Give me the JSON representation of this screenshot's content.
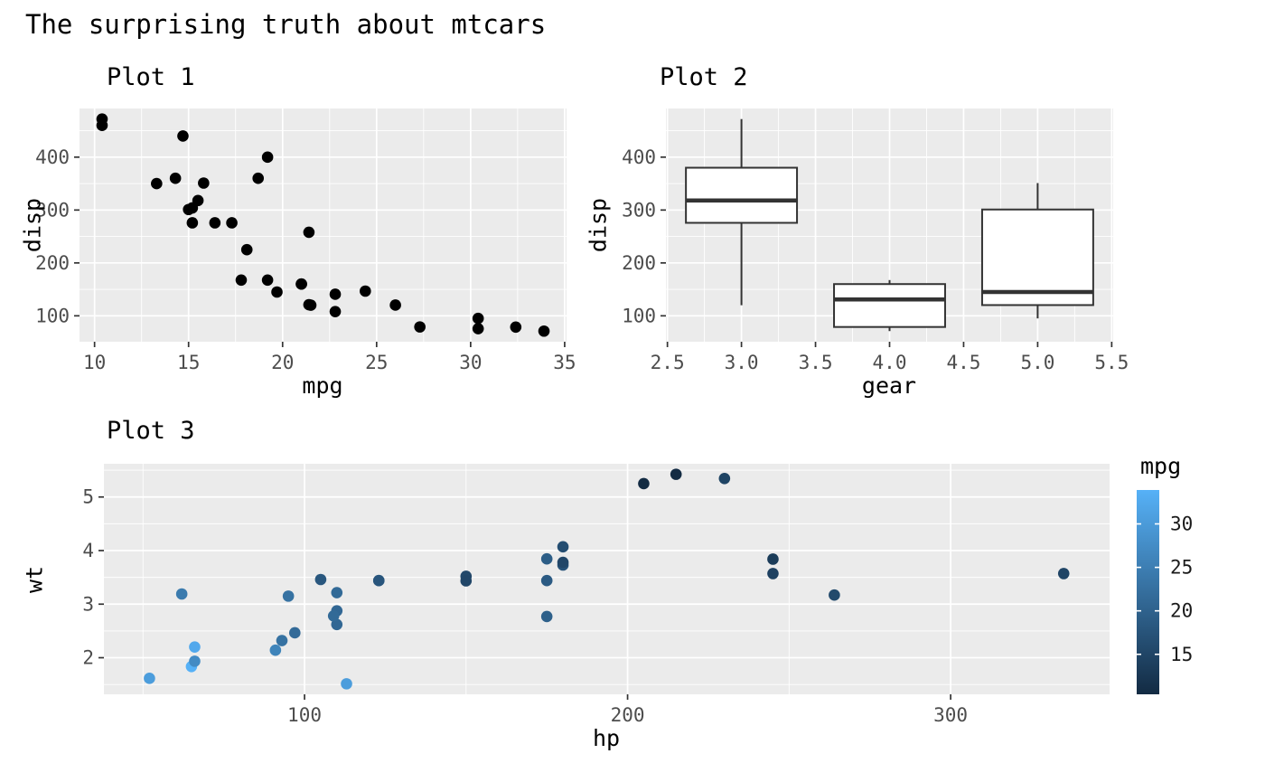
{
  "figure": {
    "title": "The surprising truth about mtcars",
    "background": "#FFFFFF",
    "panel_background": "#EBEBEB",
    "grid_color": "#FFFFFF",
    "axis_text_color": "#4D4D4D",
    "axis_title_color": "#000000",
    "tick_mark_color": "#333333"
  },
  "chart_data": [
    {
      "id": "plot1",
      "type": "scatter",
      "title": "Plot 1",
      "xlabel": "mpg",
      "ylabel": "disp",
      "xlim": [
        9.2,
        35.1
      ],
      "ylim": [
        51,
        492
      ],
      "xticks": [
        10,
        15,
        20,
        25,
        30,
        35
      ],
      "xtick_labels": [
        "10",
        "15",
        "20",
        "25",
        "30",
        "35"
      ],
      "yticks": [
        100,
        200,
        300,
        400
      ],
      "ytick_labels": [
        "100",
        "200",
        "300",
        "400"
      ],
      "point_color": "#000000",
      "x": [
        21.0,
        21.0,
        22.8,
        21.4,
        18.7,
        18.1,
        14.3,
        24.4,
        22.8,
        19.2,
        17.8,
        16.4,
        17.3,
        15.2,
        10.4,
        10.4,
        14.7,
        32.4,
        30.4,
        33.9,
        21.5,
        15.5,
        15.2,
        13.3,
        19.2,
        27.3,
        26.0,
        30.4,
        15.8,
        19.7,
        15.0,
        21.4
      ],
      "y": [
        160,
        160,
        108,
        258,
        360,
        225,
        360,
        146.7,
        140.8,
        167.6,
        167.6,
        275.8,
        275.8,
        275.8,
        472,
        460,
        440,
        78.7,
        75.7,
        71.1,
        120.1,
        318,
        304,
        350,
        400,
        79,
        120.3,
        95.1,
        351,
        145,
        301,
        121
      ]
    },
    {
      "id": "plot2",
      "type": "boxplot",
      "title": "Plot 2",
      "xlabel": "gear",
      "ylabel": "disp",
      "xlim": [
        2.49,
        5.51
      ],
      "ylim": [
        51,
        492
      ],
      "xticks": [
        2.5,
        3.0,
        3.5,
        4.0,
        4.5,
        5.0,
        5.5
      ],
      "xtick_labels": [
        "2.5",
        "3.0",
        "3.5",
        "4.0",
        "4.5",
        "5.0",
        "5.5"
      ],
      "yticks": [
        100,
        200,
        300,
        400
      ],
      "ytick_labels": [
        "100",
        "200",
        "300",
        "400"
      ],
      "box_width": 0.75,
      "box_color": "#333333",
      "box_fill": "#FFFFFF",
      "boxes": [
        {
          "gear": 3,
          "lower_whisker": 120.1,
          "q1": 275.8,
          "median": 318.0,
          "q3": 380.0,
          "upper_whisker": 472.0
        },
        {
          "gear": 4,
          "lower_whisker": 71.1,
          "q1": 78.9,
          "median": 130.9,
          "q3": 160.0,
          "upper_whisker": 167.6
        },
        {
          "gear": 5,
          "lower_whisker": 95.1,
          "q1": 120.3,
          "median": 145.0,
          "q3": 301.0,
          "upper_whisker": 351.0
        }
      ]
    },
    {
      "id": "plot3",
      "type": "scatter",
      "title": "Plot 3",
      "xlabel": "hp",
      "ylabel": "wt",
      "xlim": [
        37.9,
        349.2
      ],
      "ylim": [
        1.317,
        5.62
      ],
      "xticks": [
        100,
        200,
        300
      ],
      "xtick_labels": [
        "100",
        "200",
        "300"
      ],
      "yticks": [
        2,
        3,
        4,
        5
      ],
      "ytick_labels": [
        "2",
        "3",
        "4",
        "5"
      ],
      "x": [
        110,
        110,
        93,
        110,
        175,
        105,
        245,
        62,
        95,
        123,
        123,
        180,
        180,
        180,
        205,
        215,
        230,
        66,
        52,
        65,
        97,
        150,
        150,
        245,
        175,
        66,
        91,
        113,
        264,
        175,
        335,
        109
      ],
      "y": [
        2.62,
        2.875,
        2.32,
        3.215,
        3.44,
        3.46,
        3.57,
        3.19,
        3.15,
        3.44,
        3.44,
        4.07,
        3.73,
        3.78,
        5.25,
        5.424,
        5.345,
        2.2,
        1.615,
        1.835,
        2.465,
        3.52,
        3.435,
        3.84,
        3.845,
        1.935,
        2.14,
        1.513,
        3.17,
        2.77,
        3.57,
        2.78
      ],
      "color_values": [
        21.0,
        21.0,
        22.8,
        21.4,
        18.7,
        18.1,
        14.3,
        24.4,
        22.8,
        19.2,
        17.8,
        16.4,
        17.3,
        15.2,
        10.4,
        10.4,
        14.7,
        32.4,
        30.4,
        33.9,
        21.5,
        15.5,
        15.2,
        13.3,
        19.2,
        27.3,
        26.0,
        30.4,
        15.8,
        19.7,
        15.0,
        21.4
      ],
      "color_scale": {
        "title": "mpg",
        "low": "#132B43",
        "high": "#56B1F7",
        "domain": [
          10.4,
          33.9
        ],
        "ticks": [
          15,
          20,
          25,
          30
        ],
        "tick_labels": [
          "15",
          "20",
          "25",
          "30"
        ]
      }
    }
  ]
}
